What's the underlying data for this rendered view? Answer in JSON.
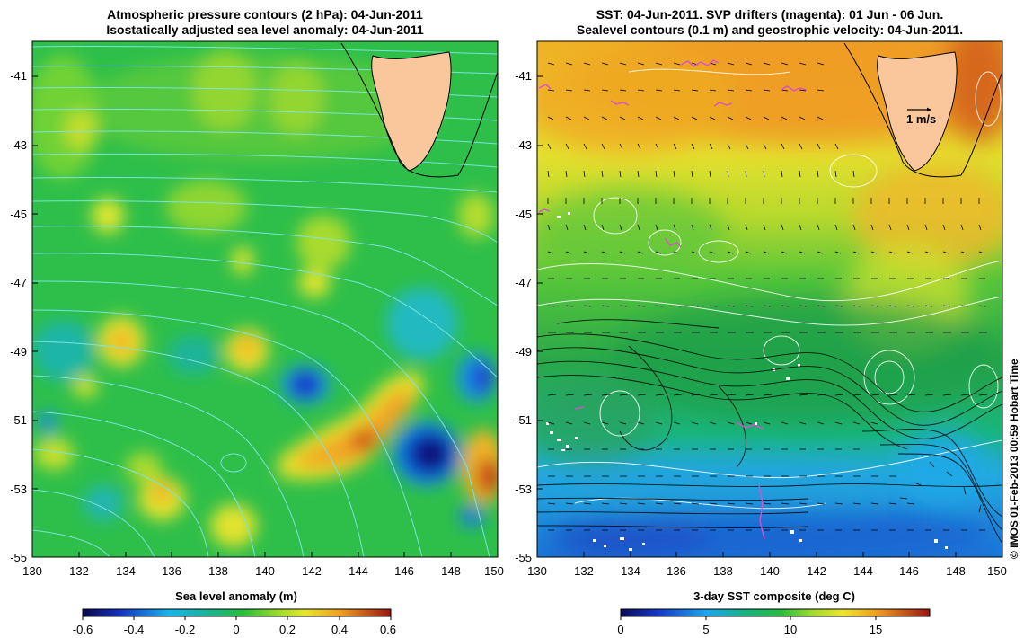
{
  "left_panel": {
    "title_line1": "Atmospheric pressure contours (2 hPa): 04-Jun-2011",
    "title_line2": "Isostatically adjusted sea level anomaly: 04-Jun-2011",
    "colorbar_title": "Sea level anomaly (m)",
    "colorbar_ticks": [
      "-0.6",
      "-0.4",
      "-0.2",
      "0",
      "0.2",
      "0.4",
      "0.6"
    ],
    "x_ticks": [
      "130",
      "132",
      "134",
      "136",
      "138",
      "140",
      "142",
      "144",
      "146",
      "148",
      "150"
    ],
    "y_ticks": [
      "-41",
      "-43",
      "-45",
      "-47",
      "-49",
      "-51",
      "-53",
      "-55"
    ]
  },
  "right_panel": {
    "title_line1": "SST: 04-Jun-2011. SVP drifters (magenta): 01 Jun - 06 Jun.",
    "title_line2": "Sealevel contours (0.1 m) and geostrophic velocity: 04-Jun-2011.",
    "colorbar_title": "3-day SST composite (deg C)",
    "colorbar_ticks": [
      "0",
      "5",
      "10",
      "15"
    ],
    "x_ticks": [
      "130",
      "132",
      "134",
      "136",
      "138",
      "140",
      "142",
      "144",
      "146",
      "148",
      "150"
    ],
    "y_ticks": [
      "-41",
      "-43",
      "-45",
      "-47",
      "-49",
      "-51",
      "-53",
      "-55"
    ],
    "velocity_scale_label": "1 m/s"
  },
  "credit": "© IMOS 01-Feb-2013 00:59 Hobart Time",
  "colors": {
    "land": "#f9c79b",
    "pressure_contour": "#7fe3e3",
    "sealevel_contour": "#ffffff",
    "drifter": "#d94fd0"
  }
}
